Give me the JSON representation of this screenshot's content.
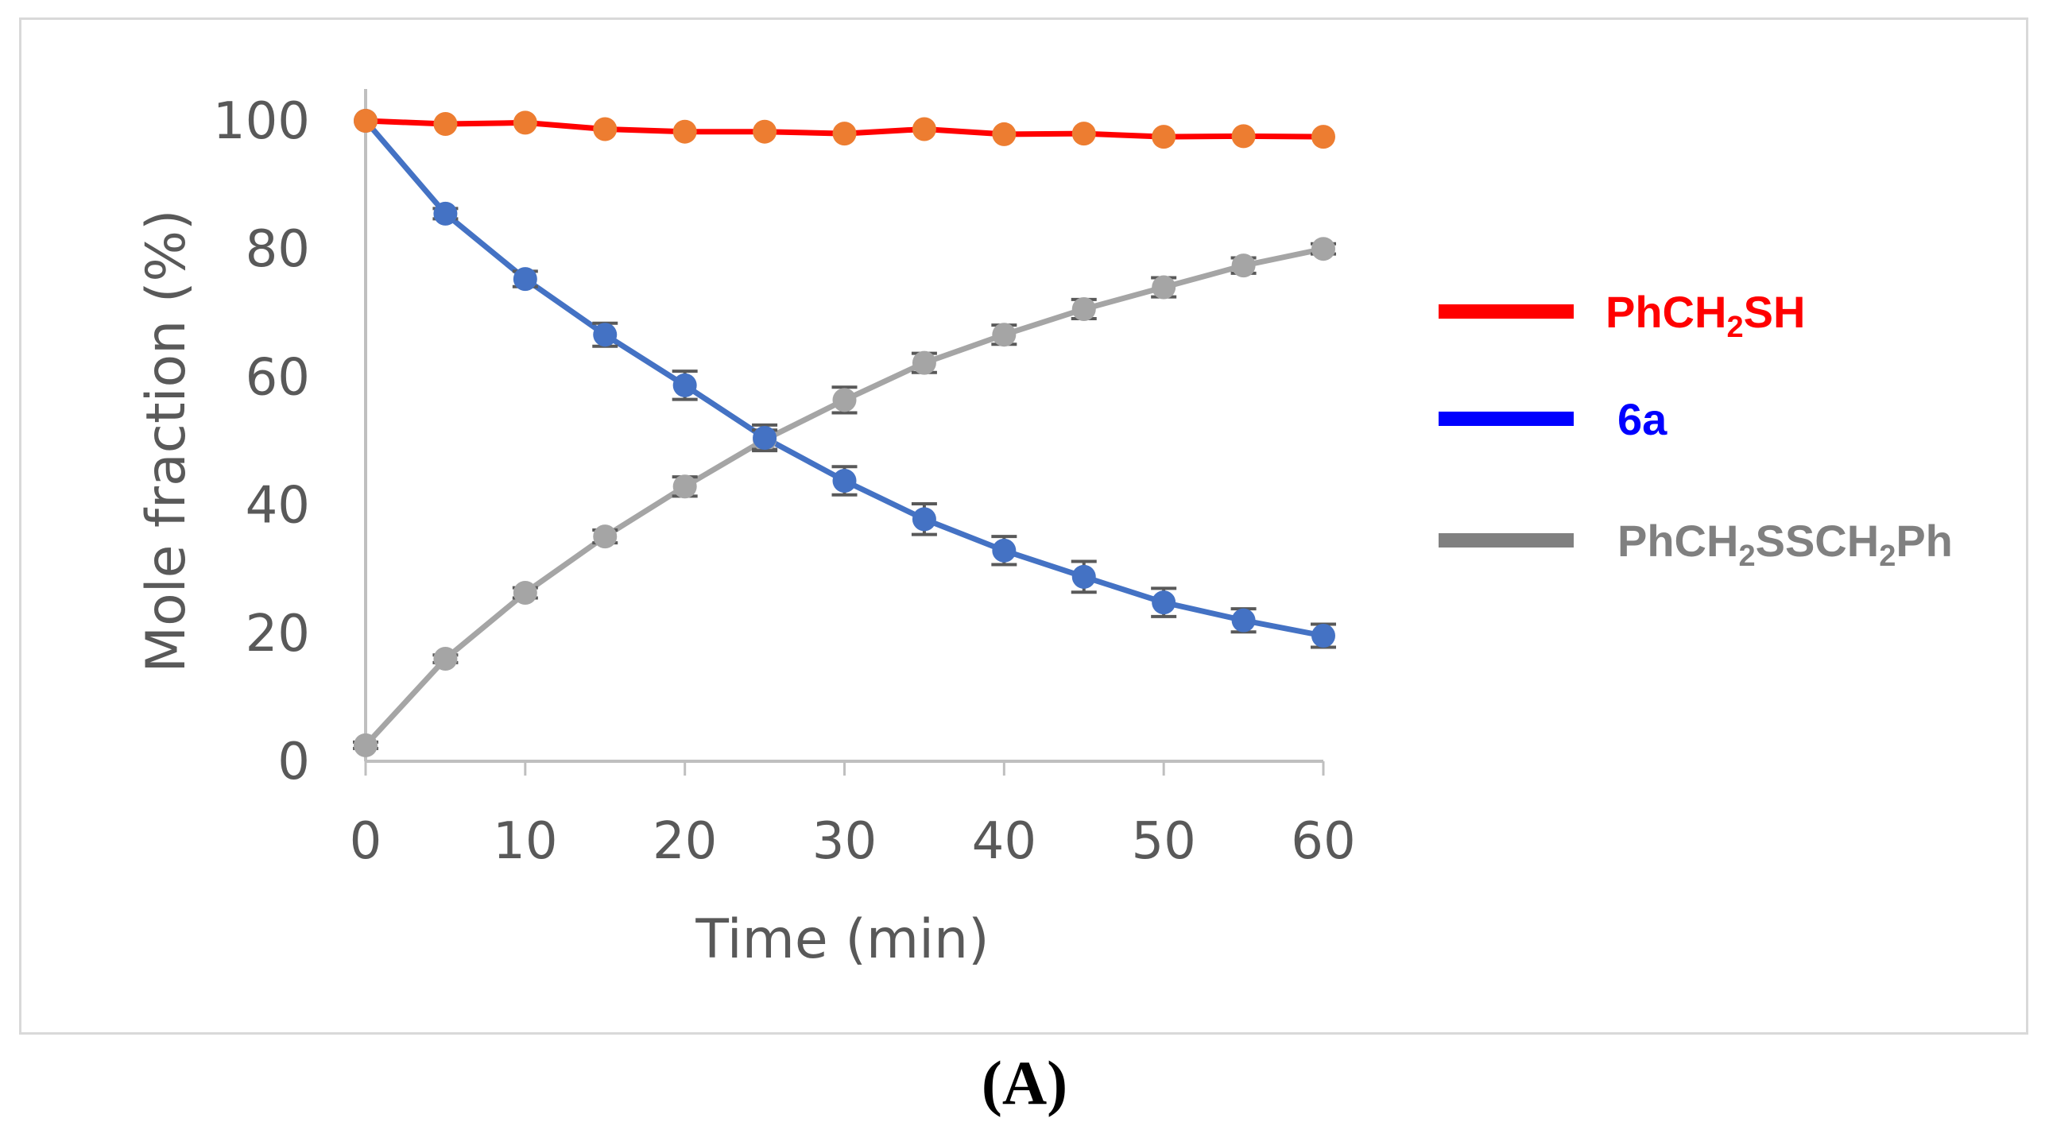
{
  "chart_data": {
    "type": "line",
    "title": "",
    "xlabel": "Time (min)",
    "ylabel": "Mole fraction (%)",
    "xlim": [
      0,
      60
    ],
    "ylim": [
      0,
      100
    ],
    "x_ticks": [
      "0",
      "10",
      "20",
      "30",
      "40",
      "50",
      "60"
    ],
    "y_ticks": [
      "0",
      "20",
      "40",
      "60",
      "80",
      "100"
    ],
    "grid": false,
    "legend_position": "right",
    "x": [
      0,
      5,
      10,
      15,
      20,
      25,
      30,
      35,
      40,
      45,
      50,
      55,
      60
    ],
    "series": [
      {
        "name": "PhCH2SH",
        "legend_main": "PhCH",
        "legend_tail": "SH",
        "legend_subs": [
          "2"
        ],
        "line_color": "#ff0000",
        "marker_color": "#ed7d31",
        "legend_color": "#ff0000",
        "values": [
          100,
          99.5,
          99.7,
          98.7,
          98.3,
          98.3,
          98.0,
          98.7,
          97.9,
          98.0,
          97.5,
          97.6,
          97.5
        ],
        "error": [
          0,
          0,
          0,
          0,
          0,
          0,
          0,
          0,
          0,
          0,
          0,
          0,
          0
        ]
      },
      {
        "name": "6a",
        "legend_main": "6a",
        "legend_tail": "",
        "legend_subs": [],
        "line_color": "#4472c4",
        "marker_color": "#4472c4",
        "legend_color": "#0000ff",
        "values": [
          100,
          85.5,
          75.3,
          66.6,
          58.7,
          50.5,
          43.8,
          37.8,
          32.9,
          28.8,
          24.8,
          22.0,
          19.6
        ],
        "error": [
          0,
          0.8,
          1.2,
          1.8,
          2.2,
          2.0,
          2.2,
          2.4,
          2.2,
          2.4,
          2.2,
          1.8,
          1.8
        ]
      },
      {
        "name": "PhCH2SSCH2Ph",
        "legend_main": "PhCH",
        "legend_tail": "SSCH",
        "legend_tail2": "Ph",
        "legend_subs": [
          "2",
          "2"
        ],
        "line_color": "#a5a5a5",
        "marker_color": "#a5a5a5",
        "legend_color": "#808080",
        "values": [
          2.5,
          16.0,
          26.3,
          35.1,
          42.9,
          50.2,
          56.4,
          62.2,
          66.6,
          70.6,
          74.0,
          77.4,
          80.0
        ],
        "error": [
          0.5,
          0.6,
          0.8,
          1.0,
          1.5,
          1.5,
          2.0,
          1.5,
          1.5,
          1.5,
          1.5,
          1.2,
          0.8
        ]
      }
    ]
  },
  "panel_label": "(A)"
}
